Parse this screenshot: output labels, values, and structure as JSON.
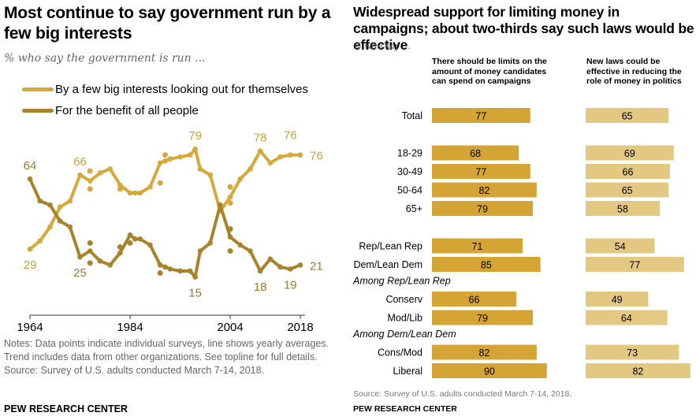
{
  "left": {
    "title": "Most continue to say government run by a few big interests",
    "subtitle": "% who say the government is run ...",
    "notes": "Notes: Data points indicate individual surveys, line shows yearly averages. Trend includes data from other organizations. See topline for full details.",
    "source": "Source: Survey of U.S. adults conducted March 7-14, 2018.",
    "brand": "PEW RESEARCH CENTER"
  },
  "right": {
    "title": "Widespread support for limiting money in campaigns; about two-thirds say such laws would be effective",
    "subtitle": "% who say ...",
    "source": "Source: Survey of U.S. adults conducted March 7-14, 2018.",
    "brand": "PEW RESEARCH CENTER"
  },
  "colors": {
    "big_interests": "#D6A93A",
    "benefit_all": "#A8832A",
    "bar_dark": "#D4A535",
    "bar_light": "#E3C882",
    "label_light": "#C9A236",
    "label_dark": "#9C7B2E"
  },
  "chart_data": [
    {
      "type": "line",
      "title": "Most continue to say government run by a few big interests",
      "subtitle": "% who say the government is run ...",
      "xlabel": "",
      "ylabel": "",
      "x_ticks": [
        1964,
        1984,
        2004,
        2018
      ],
      "xlim": [
        1964,
        2018
      ],
      "ylim": [
        10,
        85
      ],
      "grid": false,
      "legend_position": "top-left",
      "series": [
        {
          "name": "By a few big interests looking out for themselves",
          "color_key": "big_interests",
          "x": [
            1964,
            1966,
            1968,
            1970,
            1972,
            1974,
            1976,
            1978,
            1980,
            1982,
            1984,
            1985,
            1986,
            1988,
            1990,
            1991,
            1992,
            1994,
            1996,
            1997,
            1998,
            2000,
            2002,
            2004,
            2006,
            2008,
            2010,
            2012,
            2014,
            2016,
            2018
          ],
          "values": [
            29,
            33,
            40,
            50,
            53,
            66,
            63,
            67,
            69,
            61,
            57,
            57,
            57,
            60,
            72,
            73,
            74,
            75,
            76,
            79,
            69,
            66,
            48,
            55,
            64,
            69,
            78,
            72,
            75,
            76,
            76
          ],
          "survey_points": [
            [
              1976,
              68
            ],
            [
              1976,
              59
            ],
            [
              1982,
              59
            ],
            [
              1990,
              62
            ],
            [
              1991,
              76
            ],
            [
              2004,
              60
            ],
            [
              2004,
              52
            ]
          ],
          "labels": [
            {
              "x": 1964,
              "text": "29"
            },
            {
              "x": 1974,
              "text": "66"
            },
            {
              "x": 1997,
              "text": "79"
            },
            {
              "x": 2010,
              "text": "78"
            },
            {
              "x": 2016,
              "text": "76"
            },
            {
              "x": 2018,
              "text": "76"
            }
          ]
        },
        {
          "name": "For the benefit of all people",
          "color_key": "benefit_all",
          "x": [
            1964,
            1966,
            1968,
            1970,
            1972,
            1974,
            1976,
            1978,
            1980,
            1982,
            1984,
            1985,
            1986,
            1988,
            1990,
            1991,
            1992,
            1994,
            1996,
            1997,
            1998,
            2000,
            2002,
            2004,
            2006,
            2008,
            2010,
            2012,
            2014,
            2016,
            2018
          ],
          "values": [
            64,
            53,
            51,
            43,
            40,
            25,
            28,
            23,
            21,
            27,
            36,
            34,
            34,
            31,
            21,
            20,
            19,
            18,
            18,
            15,
            28,
            32,
            51,
            35,
            31,
            28,
            18,
            24,
            20,
            19,
            21
          ],
          "survey_points": [
            [
              1976,
              32
            ],
            [
              1976,
              22
            ],
            [
              1982,
              30
            ],
            [
              1984,
              32
            ],
            [
              1990,
              17
            ],
            [
              2004,
              39
            ],
            [
              2004,
              28
            ]
          ],
          "labels": [
            {
              "x": 1964,
              "text": "64"
            },
            {
              "x": 1974,
              "text": "25"
            },
            {
              "x": 1997,
              "text": "15"
            },
            {
              "x": 2010,
              "text": "18"
            },
            {
              "x": 2016,
              "text": "19"
            },
            {
              "x": 2018,
              "text": "21"
            }
          ]
        }
      ]
    },
    {
      "type": "bar",
      "orientation": "horizontal",
      "title": "Widespread support for limiting money in campaigns; about two-thirds say such laws would be effective",
      "subtitle": "% who say ...",
      "xlim": [
        0,
        100
      ],
      "grid": false,
      "series": [
        {
          "name": "There should be limits on the amount of money candidates can spend on campaigns",
          "color_key": "bar_dark"
        },
        {
          "name": "New laws could be effective in reducing the role of money in politics",
          "color_key": "bar_light"
        }
      ],
      "rows": [
        {
          "type": "row",
          "label": "Total",
          "values": [
            77,
            65
          ]
        },
        {
          "type": "gap"
        },
        {
          "type": "row",
          "label": "18-29",
          "values": [
            68,
            69
          ]
        },
        {
          "type": "row",
          "label": "30-49",
          "values": [
            77,
            66
          ]
        },
        {
          "type": "row",
          "label": "50-64",
          "values": [
            82,
            65
          ]
        },
        {
          "type": "row",
          "label": "65+",
          "values": [
            79,
            58
          ]
        },
        {
          "type": "gap"
        },
        {
          "type": "row",
          "label": "Rep/Lean Rep",
          "values": [
            71,
            54
          ]
        },
        {
          "type": "row",
          "label": "Dem/Lean Dem",
          "values": [
            85,
            77
          ]
        },
        {
          "type": "header",
          "label": "Among Rep/Lean Rep"
        },
        {
          "type": "row",
          "label": "Conserv",
          "values": [
            66,
            49
          ]
        },
        {
          "type": "row",
          "label": "Mod/Lib",
          "values": [
            79,
            64
          ]
        },
        {
          "type": "header",
          "label": "Among Dem/Lean Dem"
        },
        {
          "type": "row",
          "label": "Cons/Mod",
          "values": [
            82,
            73
          ]
        },
        {
          "type": "row",
          "label": "Liberal",
          "values": [
            90,
            82
          ]
        }
      ]
    }
  ]
}
